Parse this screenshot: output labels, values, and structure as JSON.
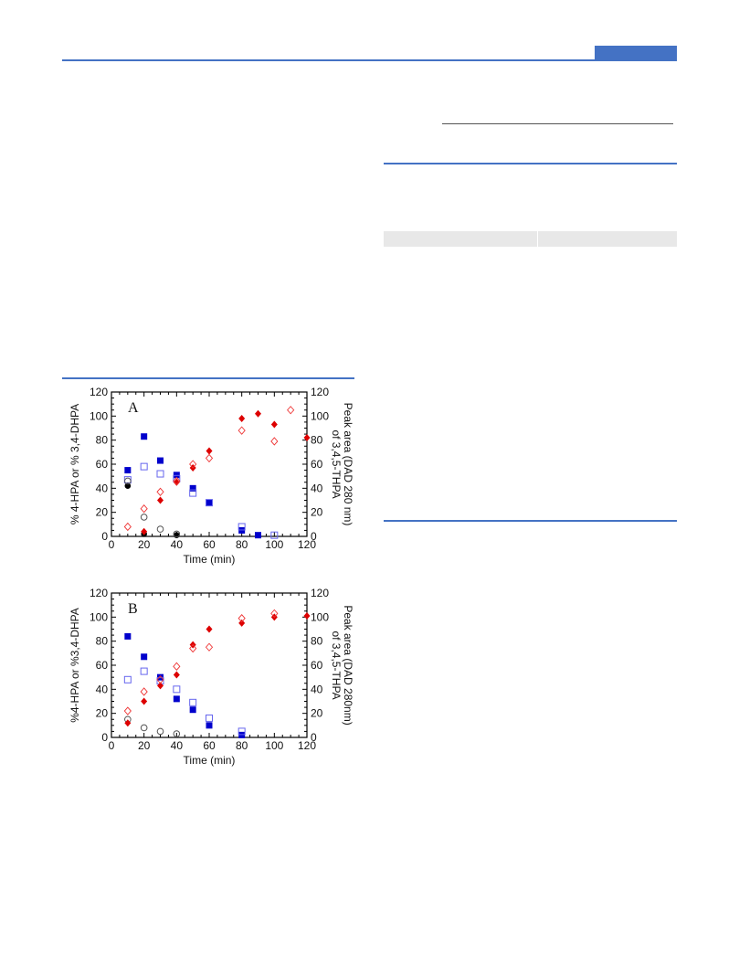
{
  "colors": {
    "accent": "#4472c4",
    "blue": "#0000cc",
    "red": "#dd0000",
    "black": "#000000",
    "gray": "#666666"
  },
  "chart_data": [
    {
      "type": "scatter",
      "panel_label": "A",
      "xlabel": "Time (min)",
      "ylabel": "% 4-HPA or % 3,4-DHPA",
      "y2label_line1": "Peak area (DAD 280 nm)",
      "y2label_line2": "of 3,4,5-THPA",
      "xlim": [
        0,
        120
      ],
      "ylim": [
        0,
        120
      ],
      "y2lim": [
        0,
        120
      ],
      "xticks": [
        0,
        20,
        40,
        60,
        80,
        100,
        120
      ],
      "yticks": [
        0,
        20,
        40,
        60,
        80,
        100,
        120
      ],
      "series": [
        {
          "marker": "filled-square",
          "color": "#0000cc",
          "axis": "left",
          "x": [
            10,
            20,
            30,
            40,
            50,
            60,
            80,
            90
          ],
          "y": [
            55,
            83,
            63,
            51,
            40,
            28,
            5,
            1
          ]
        },
        {
          "marker": "open-square",
          "color": "#6666ee",
          "axis": "left",
          "x": [
            10,
            20,
            30,
            40,
            50,
            60,
            80,
            100
          ],
          "y": [
            47,
            58,
            52,
            48,
            36,
            28,
            8,
            1
          ]
        },
        {
          "marker": "filled-circle",
          "color": "#000000",
          "axis": "left",
          "x": [
            10,
            20,
            40
          ],
          "y": [
            42,
            2,
            1
          ]
        },
        {
          "marker": "open-circle",
          "color": "#555555",
          "axis": "left",
          "x": [
            10,
            20,
            30,
            40
          ],
          "y": [
            46,
            16,
            6,
            2
          ]
        },
        {
          "marker": "filled-diamond",
          "color": "#dd0000",
          "axis": "right",
          "x": [
            20,
            30,
            40,
            50,
            60,
            80,
            90,
            100,
            120
          ],
          "y": [
            4,
            30,
            45,
            57,
            71,
            98,
            102,
            93,
            82
          ]
        },
        {
          "marker": "open-diamond",
          "color": "#ee3333",
          "axis": "right",
          "x": [
            10,
            20,
            30,
            40,
            50,
            60,
            80,
            100,
            110
          ],
          "y": [
            8,
            23,
            37,
            46,
            60,
            65,
            88,
            79,
            105
          ]
        }
      ]
    },
    {
      "type": "scatter",
      "panel_label": "B",
      "xlabel": "Time (min)",
      "ylabel": "%4-HPA or %3,4-DHPA",
      "y2label_line1": "Peak area (DAD 280nm)",
      "y2label_line2": "of 3,4,5-THPA",
      "xlim": [
        0,
        120
      ],
      "ylim": [
        0,
        120
      ],
      "y2lim": [
        0,
        120
      ],
      "xticks": [
        0,
        20,
        40,
        60,
        80,
        100,
        120
      ],
      "yticks": [
        0,
        20,
        40,
        60,
        80,
        100,
        120
      ],
      "series": [
        {
          "marker": "filled-square",
          "color": "#0000cc",
          "axis": "left",
          "x": [
            10,
            20,
            30,
            40,
            50,
            60,
            80
          ],
          "y": [
            84,
            67,
            50,
            32,
            23,
            10,
            2
          ]
        },
        {
          "marker": "open-square",
          "color": "#6666ee",
          "axis": "left",
          "x": [
            10,
            20,
            30,
            40,
            50,
            60,
            80
          ],
          "y": [
            48,
            55,
            47,
            40,
            29,
            16,
            5
          ]
        },
        {
          "marker": "open-circle",
          "color": "#555555",
          "axis": "left",
          "x": [
            10,
            20,
            30,
            40
          ],
          "y": [
            15,
            8,
            5,
            3
          ]
        },
        {
          "marker": "filled-diamond",
          "color": "#dd0000",
          "axis": "right",
          "x": [
            10,
            20,
            30,
            40,
            50,
            60,
            80,
            100,
            120
          ],
          "y": [
            12,
            30,
            43,
            52,
            77,
            90,
            95,
            100,
            101
          ]
        },
        {
          "marker": "open-diamond",
          "color": "#ee3333",
          "axis": "right",
          "x": [
            10,
            20,
            30,
            40,
            50,
            60,
            80,
            100
          ],
          "y": [
            22,
            38,
            48,
            59,
            74,
            75,
            99,
            103
          ]
        }
      ]
    }
  ]
}
